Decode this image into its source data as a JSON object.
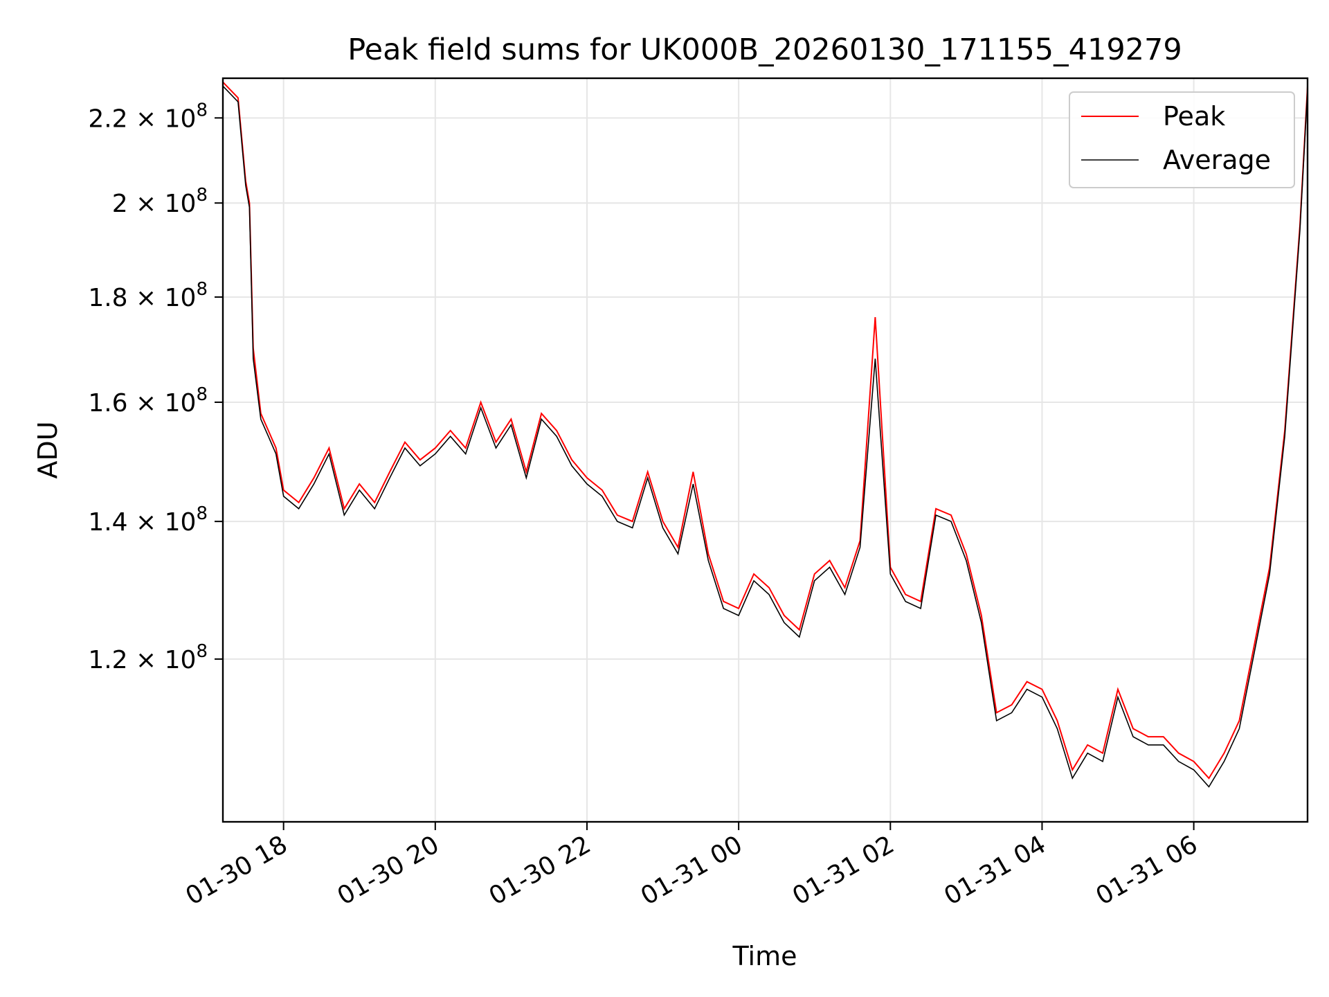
{
  "chart_data": {
    "type": "line",
    "title": "Peak field sums for UK000B_20260130_171155_419279",
    "xlabel": "Time",
    "ylabel": "ADU",
    "yscale": "log",
    "ylim": [
      100000000,
      230000000
    ],
    "xlim_hours": [
      -0.8,
      13.5
    ],
    "grid": true,
    "legend_position": "upper right",
    "x_ticks": [
      {
        "label": "01-30 18",
        "hour": 0
      },
      {
        "label": "01-30 20",
        "hour": 2
      },
      {
        "label": "01-30 22",
        "hour": 4
      },
      {
        "label": "01-31 00",
        "hour": 6
      },
      {
        "label": "01-31 02",
        "hour": 8
      },
      {
        "label": "01-31 04",
        "hour": 10
      },
      {
        "label": "01-31 06",
        "hour": 12
      }
    ],
    "y_ticks": [
      {
        "mantissa": "1.2",
        "exp": "8",
        "value": 120000000
      },
      {
        "mantissa": "1.4",
        "exp": "8",
        "value": 140000000
      },
      {
        "mantissa": "1.6",
        "exp": "8",
        "value": 160000000
      },
      {
        "mantissa": "1.8",
        "exp": "8",
        "value": 180000000
      },
      {
        "mantissa": "2",
        "exp": "8",
        "value": 200000000
      },
      {
        "mantissa": "2.2",
        "exp": "8",
        "value": 220000000
      }
    ],
    "series": [
      {
        "name": "Peak",
        "color": "#ff0000",
        "hours": [
          -0.8,
          -0.6,
          -0.5,
          -0.45,
          -0.4,
          -0.3,
          -0.2,
          -0.1,
          0,
          0.2,
          0.4,
          0.6,
          0.8,
          1.0,
          1.2,
          1.4,
          1.6,
          1.8,
          2.0,
          2.2,
          2.4,
          2.6,
          2.8,
          3.0,
          3.2,
          3.4,
          3.6,
          3.8,
          4.0,
          4.2,
          4.4,
          4.6,
          4.8,
          5.0,
          5.2,
          5.4,
          5.6,
          5.8,
          6.0,
          6.2,
          6.4,
          6.6,
          6.8,
          7.0,
          7.2,
          7.4,
          7.6,
          7.8,
          8.0,
          8.2,
          8.4,
          8.6,
          8.8,
          9.0,
          9.2,
          9.4,
          9.6,
          9.8,
          10.0,
          10.2,
          10.4,
          10.6,
          10.8,
          11.0,
          11.2,
          11.4,
          11.6,
          11.8,
          12.0,
          12.2,
          12.4,
          12.6,
          12.8,
          13.0,
          13.2,
          13.4,
          13.5
        ],
        "values": [
          229000000,
          225000000,
          205000000,
          200000000,
          170000000,
          158000000,
          155000000,
          152000000,
          145000000,
          143000000,
          147000000,
          152000000,
          142000000,
          146000000,
          143000000,
          148000000,
          153000000,
          150000000,
          152000000,
          155000000,
          152000000,
          160000000,
          153000000,
          157000000,
          148000000,
          158000000,
          155000000,
          150000000,
          147000000,
          145000000,
          141000000,
          140000000,
          148000000,
          140000000,
          136000000,
          148000000,
          135000000,
          128000000,
          127000000,
          132000000,
          130000000,
          126000000,
          124000000,
          132000000,
          134000000,
          130000000,
          137000000,
          176000000,
          133000000,
          129000000,
          128000000,
          142000000,
          141000000,
          135000000,
          126000000,
          113000000,
          114000000,
          117000000,
          116000000,
          112000000,
          106000000,
          109000000,
          108000000,
          116000000,
          111000000,
          110000000,
          110000000,
          108000000,
          107000000,
          105000000,
          108000000,
          112000000,
          122000000,
          133000000,
          155000000,
          195000000,
          228000000
        ]
      },
      {
        "name": "Average",
        "color": "#000000",
        "hours": [
          -0.8,
          -0.6,
          -0.5,
          -0.45,
          -0.4,
          -0.3,
          -0.2,
          -0.1,
          0,
          0.2,
          0.4,
          0.6,
          0.8,
          1.0,
          1.2,
          1.4,
          1.6,
          1.8,
          2.0,
          2.2,
          2.4,
          2.6,
          2.8,
          3.0,
          3.2,
          3.4,
          3.6,
          3.8,
          4.0,
          4.2,
          4.4,
          4.6,
          4.8,
          5.0,
          5.2,
          5.4,
          5.6,
          5.8,
          6.0,
          6.2,
          6.4,
          6.6,
          6.8,
          7.0,
          7.2,
          7.4,
          7.6,
          7.8,
          8.0,
          8.2,
          8.4,
          8.6,
          8.8,
          9.0,
          9.2,
          9.4,
          9.6,
          9.8,
          10.0,
          10.2,
          10.4,
          10.6,
          10.8,
          11.0,
          11.2,
          11.4,
          11.6,
          11.8,
          12.0,
          12.2,
          12.4,
          12.6,
          12.8,
          13.0,
          13.2,
          13.4,
          13.5
        ],
        "values": [
          228000000,
          224000000,
          204000000,
          199000000,
          168000000,
          157000000,
          154000000,
          151000000,
          144000000,
          142000000,
          146000000,
          151000000,
          141000000,
          145000000,
          142000000,
          147000000,
          152000000,
          149000000,
          151000000,
          154000000,
          151000000,
          159000000,
          152000000,
          156000000,
          147000000,
          157000000,
          154000000,
          149000000,
          146000000,
          144000000,
          140000000,
          139000000,
          147000000,
          139000000,
          135000000,
          146000000,
          134000000,
          127000000,
          126000000,
          131000000,
          129000000,
          125000000,
          123000000,
          131000000,
          133000000,
          129000000,
          136000000,
          168000000,
          132000000,
          128000000,
          127000000,
          141000000,
          140000000,
          134000000,
          125000000,
          112000000,
          113000000,
          116000000,
          115000000,
          111000000,
          105000000,
          108000000,
          107000000,
          115000000,
          110000000,
          109000000,
          109000000,
          107000000,
          106000000,
          104000000,
          107000000,
          111000000,
          121000000,
          132000000,
          154000000,
          194000000,
          227000000
        ]
      }
    ]
  }
}
